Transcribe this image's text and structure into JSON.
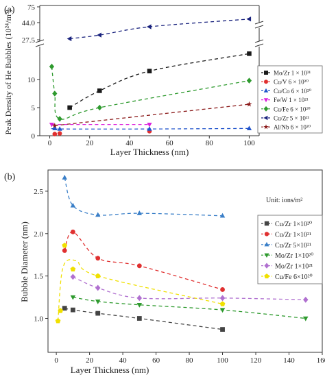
{
  "chart_data": [
    {
      "panel": "(a)",
      "type": "scatter",
      "xlabel": "Layer Thickness (nm)",
      "ylabel": "Peak Density of He Bubbles (10²⁴/m³)",
      "xlim": [
        -5,
        105
      ],
      "x_ticks": [
        0,
        20,
        40,
        60,
        80,
        100
      ],
      "y_ticks_lower": [
        0,
        5,
        10
      ],
      "y_ticks_upper": [
        "27.5",
        "44.0",
        "75"
      ],
      "y_break": true,
      "legend_position": "right",
      "series": [
        {
          "name": "Mo/Zr 1 × 10²¹",
          "color": "#1a1a1a",
          "marker": "square",
          "x": [
            10,
            25,
            50,
            100
          ],
          "y": [
            5.0,
            8.0,
            11.5,
            14.6
          ],
          "fit": true
        },
        {
          "name": "Cu/V  6 × 10²⁰",
          "color": "#e03030",
          "marker": "circle",
          "x": [
            2.5,
            5,
            50
          ],
          "y": [
            0.3,
            0.4,
            0.8
          ],
          "fit": false
        },
        {
          "name": "Cu/Co 6 × 10²⁰",
          "color": "#2255cc",
          "marker": "triangle-up",
          "x": [
            2.5,
            5,
            50,
            100
          ],
          "y": [
            1.3,
            1.2,
            1.2,
            1.3
          ],
          "fit": true
        },
        {
          "name": "Fe/W  1 × 10²¹",
          "color": "#dd22dd",
          "marker": "triangle-down",
          "x": [
            1,
            50
          ],
          "y": [
            2.0,
            2.0
          ],
          "fit": true
        },
        {
          "name": "Cu/Fe 6 × 10²⁰",
          "color": "#2e9a2e",
          "marker": "diamond",
          "x": [
            1,
            2.5,
            5,
            25,
            100
          ],
          "y": [
            12.3,
            7.5,
            3.0,
            5.0,
            9.8
          ],
          "fit": true
        },
        {
          "name": "Cu/Zr  5 × 10²¹",
          "color": "#1a237e",
          "marker": "triangle-left",
          "x": [
            10,
            25,
            50,
            100
          ],
          "y": [
            28.5,
            32.0,
            40.0,
            51.0
          ],
          "fit": true
        },
        {
          "name": "Al/Nb  6 × 10²⁰",
          "color": "#8b1a1a",
          "marker": "star",
          "x": [
            2.5,
            100
          ],
          "y": [
            1.8,
            5.6
          ],
          "fit": true
        }
      ]
    },
    {
      "panel": "(b)",
      "type": "scatter",
      "xlabel": "Layer Thickness (nm)",
      "ylabel": "Bubble Diameter (nm)",
      "xlim": [
        -5,
        160
      ],
      "ylim": [
        0.6,
        2.75
      ],
      "x_ticks": [
        0,
        20,
        40,
        60,
        80,
        100,
        120,
        140,
        160
      ],
      "y_ticks": [
        "1.0",
        "1.5",
        "2.0",
        "2.5"
      ],
      "legend_title": "Unit: ions/m²",
      "legend_position": "right",
      "series": [
        {
          "name": "Cu/Zr  1×10²⁰",
          "color": "#444444",
          "marker": "square",
          "x": [
            5,
            10,
            25,
            50,
            100
          ],
          "y": [
            1.12,
            1.1,
            1.06,
            1.0,
            0.87
          ]
        },
        {
          "name": "Cu/Zr  1×10²¹",
          "color": "#e03030",
          "marker": "circle",
          "x": [
            5,
            10,
            25,
            50,
            100
          ],
          "y": [
            1.8,
            2.02,
            1.71,
            1.62,
            1.34
          ]
        },
        {
          "name": "Cu/Zr  5×10²¹",
          "color": "#3a7fc8",
          "marker": "triangle-up",
          "x": [
            5,
            10,
            25,
            50,
            100
          ],
          "y": [
            2.66,
            2.33,
            2.22,
            2.24,
            2.21
          ]
        },
        {
          "name": "Mo/Zr  1×10²⁰",
          "color": "#2e9a2e",
          "marker": "triangle-down",
          "x": [
            10,
            25,
            50,
            100,
            150
          ],
          "y": [
            1.25,
            1.2,
            1.16,
            1.1,
            1.0
          ]
        },
        {
          "name": "Mo/Zr  1×10²¹",
          "color": "#b070d0",
          "marker": "diamond",
          "x": [
            10,
            25,
            50,
            100,
            150
          ],
          "y": [
            1.49,
            1.36,
            1.24,
            1.24,
            1.22
          ]
        },
        {
          "name": "Cu/Fe  6×10²⁰",
          "color": "#f0e000",
          "marker": "pentagon",
          "x": [
            1,
            2.5,
            5,
            10,
            25,
            100
          ],
          "y": [
            0.97,
            1.09,
            1.86,
            1.58,
            1.5,
            1.17
          ]
        }
      ]
    }
  ]
}
